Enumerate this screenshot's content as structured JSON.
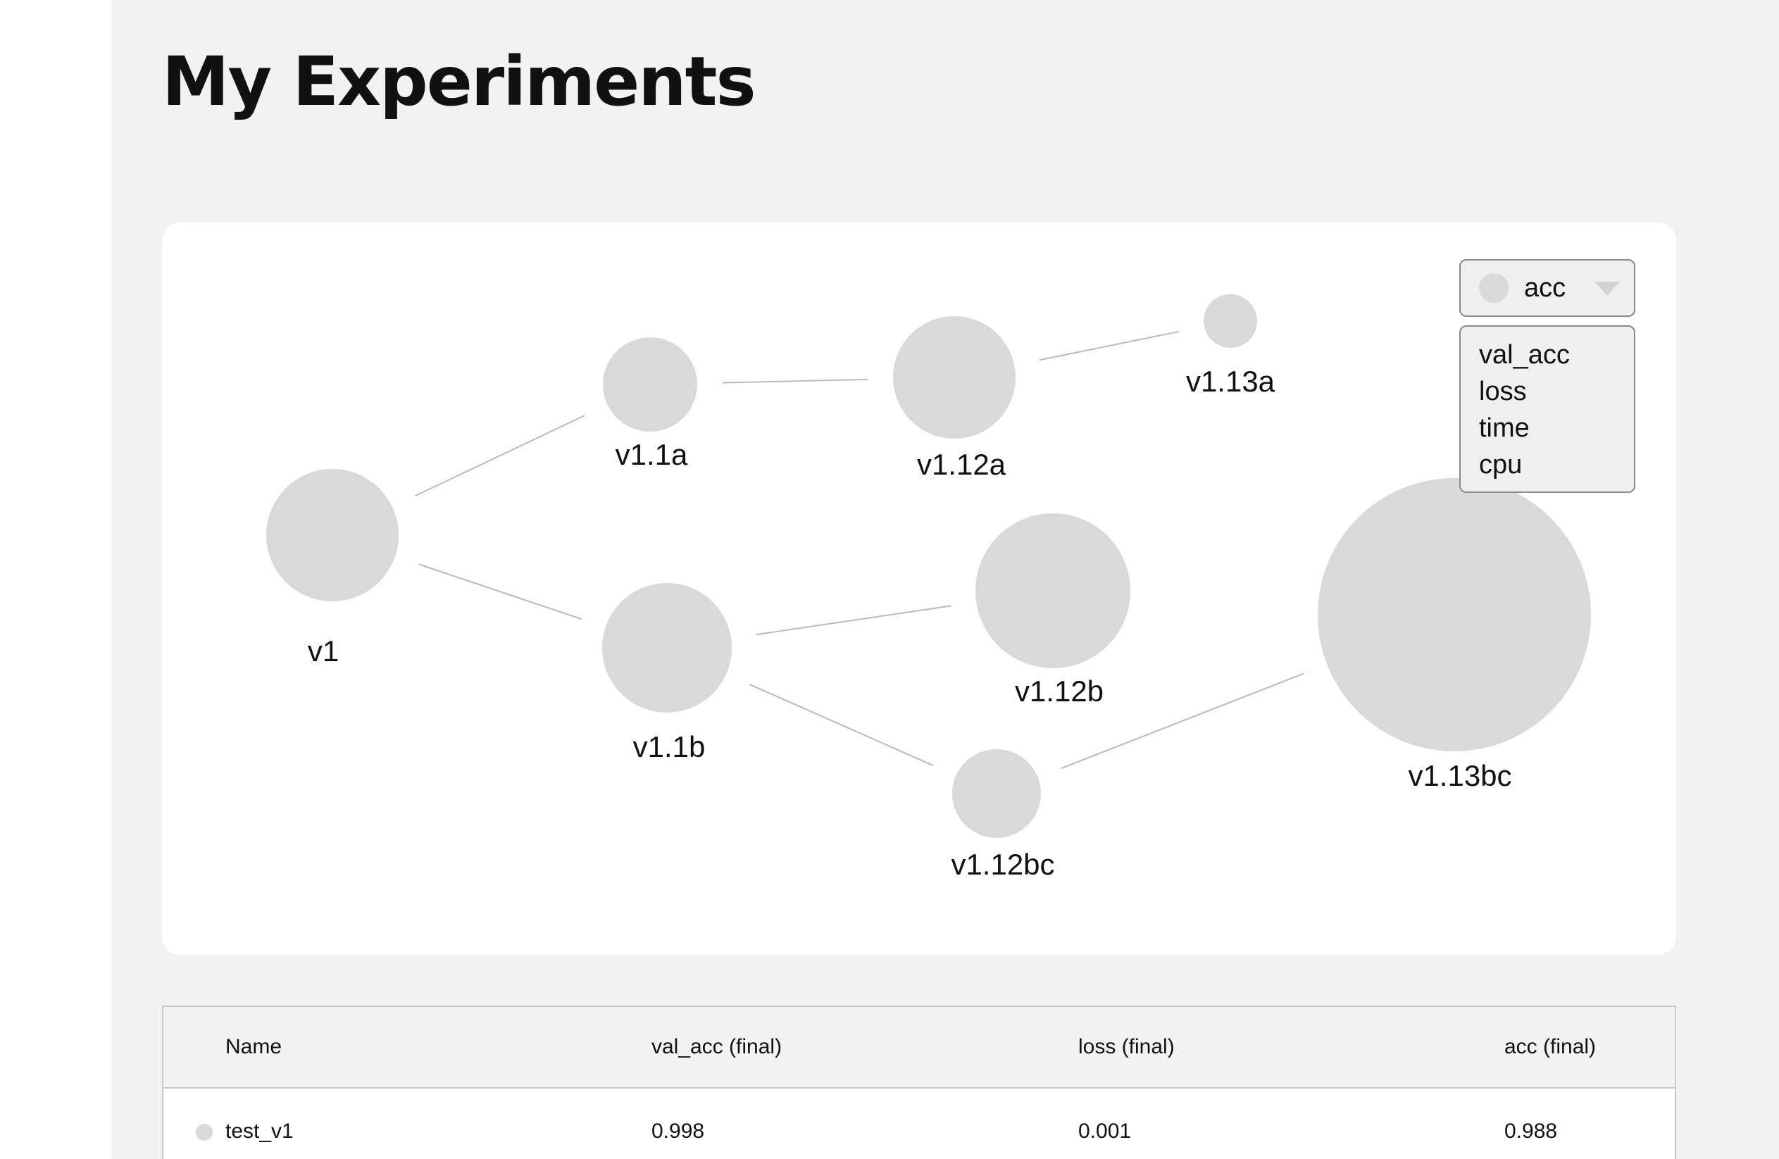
{
  "page": {
    "title": "My Experiments"
  },
  "colors": {
    "node": "#d9d9d9",
    "edge": "#c9b3bb",
    "background": "#f2f2f2"
  },
  "graph": {
    "nodes": [
      {
        "id": "v1",
        "label": "v1"
      },
      {
        "id": "v1.1a",
        "label": "v1.1a"
      },
      {
        "id": "v1.1b",
        "label": "v1.1b"
      },
      {
        "id": "v1.12a",
        "label": "v1.12a"
      },
      {
        "id": "v1.13a",
        "label": "v1.13a"
      },
      {
        "id": "v1.12b",
        "label": "v1.12b"
      },
      {
        "id": "v1.12bc",
        "label": "v1.12bc"
      },
      {
        "id": "v1.13bc",
        "label": "v1.13bc"
      }
    ],
    "edges": [
      [
        "v1",
        "v1.1a"
      ],
      [
        "v1",
        "v1.1b"
      ],
      [
        "v1.1a",
        "v1.12a"
      ],
      [
        "v1.12a",
        "v1.13a"
      ],
      [
        "v1.1b",
        "v1.12b"
      ],
      [
        "v1.1b",
        "v1.12bc"
      ],
      [
        "v1.12bc",
        "v1.13bc"
      ]
    ]
  },
  "metric_selector": {
    "selected": "acc",
    "options": [
      "val_acc",
      "loss",
      "time",
      "cpu"
    ]
  },
  "table": {
    "columns": [
      "Name",
      "val_acc (final)",
      "loss (final)",
      "acc (final)"
    ],
    "rows": [
      {
        "name": "test_v1",
        "val_acc": "0.998",
        "loss": "0.001",
        "acc": "0.988"
      }
    ]
  }
}
